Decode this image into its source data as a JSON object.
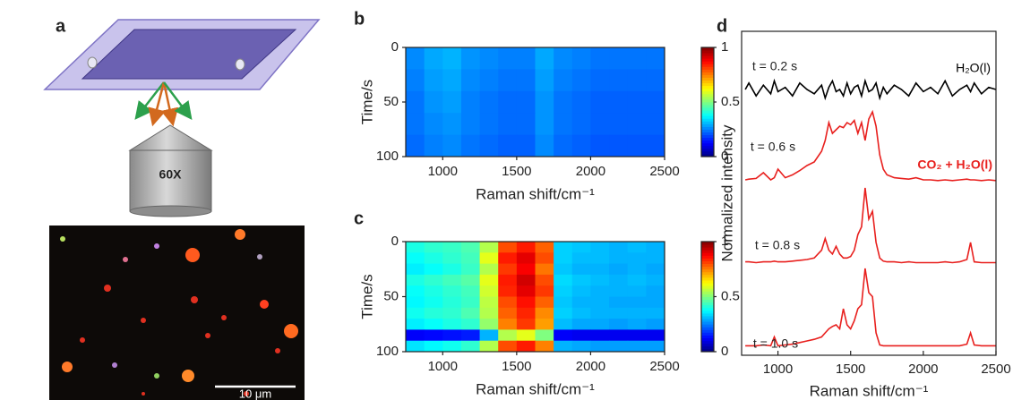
{
  "schematic": {
    "label": "a",
    "objective": "60X",
    "scale_bar": "10 μm"
  },
  "chart_data": [
    {
      "type": "heatmap",
      "label": "b",
      "xlabel": "Raman shift/cm⁻¹",
      "ylabel": "Time/s",
      "x": [
        812.5,
        937.5,
        1062.5,
        1187.5,
        1312.5,
        1437.5,
        1562.5,
        1687.5,
        1812.5,
        1937.5,
        2062.5,
        2187.5,
        2312.5,
        2437.5
      ],
      "y": [
        10,
        30,
        50,
        70,
        90
      ],
      "z": [
        [
          0.26,
          0.29,
          0.3,
          0.27,
          0.26,
          0.25,
          0.25,
          0.29,
          0.26,
          0.25,
          0.24,
          0.24,
          0.24,
          0.24
        ],
        [
          0.25,
          0.28,
          0.29,
          0.26,
          0.25,
          0.24,
          0.24,
          0.28,
          0.25,
          0.24,
          0.23,
          0.23,
          0.23,
          0.23
        ],
        [
          0.24,
          0.27,
          0.28,
          0.25,
          0.24,
          0.23,
          0.23,
          0.27,
          0.24,
          0.23,
          0.22,
          0.22,
          0.22,
          0.22
        ],
        [
          0.24,
          0.26,
          0.27,
          0.25,
          0.24,
          0.23,
          0.23,
          0.27,
          0.24,
          0.23,
          0.22,
          0.22,
          0.22,
          0.22
        ],
        [
          0.23,
          0.25,
          0.26,
          0.24,
          0.23,
          0.22,
          0.22,
          0.26,
          0.23,
          0.22,
          0.21,
          0.21,
          0.21,
          0.21
        ]
      ],
      "xlim": [
        750,
        2500
      ],
      "xticks": [
        1000,
        1500,
        2000,
        2500
      ],
      "ylim": [
        0,
        100
      ],
      "yticks": [
        0,
        50,
        100
      ],
      "y_inverted": true,
      "clim": [
        0,
        1
      ],
      "cticks": [
        0,
        0.5,
        1
      ]
    },
    {
      "type": "heatmap",
      "label": "c",
      "xlabel": "Raman shift/cm⁻¹",
      "ylabel": "Time/s",
      "x": [
        812.5,
        937.5,
        1062.5,
        1187.5,
        1312.5,
        1437.5,
        1562.5,
        1687.5,
        1812.5,
        1937.5,
        2062.5,
        2187.5,
        2312.5,
        2437.5
      ],
      "y": [
        5,
        15,
        25,
        35,
        45,
        55,
        65,
        75,
        85,
        95
      ],
      "z": [
        [
          0.4,
          0.42,
          0.43,
          0.45,
          0.55,
          0.8,
          0.85,
          0.78,
          0.33,
          0.32,
          0.31,
          0.3,
          0.31,
          0.3
        ],
        [
          0.38,
          0.4,
          0.42,
          0.44,
          0.6,
          0.85,
          0.9,
          0.8,
          0.33,
          0.31,
          0.31,
          0.3,
          0.3,
          0.3
        ],
        [
          0.36,
          0.38,
          0.4,
          0.43,
          0.55,
          0.82,
          0.88,
          0.76,
          0.32,
          0.3,
          0.3,
          0.29,
          0.3,
          0.29
        ],
        [
          0.4,
          0.42,
          0.44,
          0.46,
          0.6,
          0.85,
          0.92,
          0.8,
          0.34,
          0.32,
          0.31,
          0.3,
          0.31,
          0.3
        ],
        [
          0.38,
          0.4,
          0.42,
          0.44,
          0.58,
          0.84,
          0.9,
          0.82,
          0.33,
          0.31,
          0.3,
          0.3,
          0.3,
          0.29
        ],
        [
          0.37,
          0.39,
          0.41,
          0.43,
          0.56,
          0.8,
          0.86,
          0.78,
          0.32,
          0.3,
          0.3,
          0.29,
          0.29,
          0.29
        ],
        [
          0.39,
          0.41,
          0.42,
          0.45,
          0.55,
          0.78,
          0.84,
          0.74,
          0.33,
          0.31,
          0.3,
          0.3,
          0.3,
          0.3
        ],
        [
          0.36,
          0.38,
          0.4,
          0.42,
          0.52,
          0.75,
          0.82,
          0.72,
          0.31,
          0.29,
          0.29,
          0.28,
          0.29,
          0.28
        ],
        [
          0.12,
          0.13,
          0.14,
          0.15,
          0.3,
          0.55,
          0.6,
          0.5,
          0.12,
          0.11,
          0.11,
          0.11,
          0.11,
          0.11
        ],
        [
          0.35,
          0.37,
          0.39,
          0.42,
          0.55,
          0.8,
          0.85,
          0.75,
          0.3,
          0.29,
          0.28,
          0.28,
          0.28,
          0.28
        ]
      ],
      "xlim": [
        750,
        2500
      ],
      "xticks": [
        1000,
        1500,
        2000,
        2500
      ],
      "ylim": [
        0,
        100
      ],
      "yticks": [
        0,
        50,
        100
      ],
      "y_inverted": true,
      "clim": [
        0,
        1
      ],
      "cticks": [
        0,
        0.5,
        1
      ]
    },
    {
      "type": "line",
      "label": "d",
      "xlabel": "Raman shift/cm⁻¹",
      "ylabel": "Normalized intensity",
      "xlim": [
        750,
        2500
      ],
      "xticks": [
        1000,
        1500,
        2000,
        2500
      ],
      "x": [
        775,
        800,
        850,
        900,
        950,
        975,
        1000,
        1050,
        1100,
        1150,
        1200,
        1250,
        1300,
        1325,
        1350,
        1375,
        1400,
        1425,
        1450,
        1475,
        1500,
        1525,
        1550,
        1575,
        1600,
        1625,
        1650,
        1675,
        1700,
        1725,
        1750,
        1800,
        1850,
        1900,
        1950,
        2000,
        2050,
        2100,
        2150,
        2200,
        2250,
        2300,
        2325,
        2350,
        2400,
        2450,
        2500
      ],
      "series": [
        {
          "name": "t = 0.2 s",
          "color": "#000000",
          "values": [
            0.5,
            0.8,
            0.2,
            0.7,
            0.3,
            0.9,
            0.4,
            0.6,
            0.2,
            0.8,
            0.5,
            0.3,
            0.7,
            0.1,
            0.6,
            0.9,
            0.4,
            0.5,
            0.2,
            0.8,
            0.3,
            0.6,
            0.7,
            0.2,
            0.9,
            0.4,
            0.5,
            0.8,
            0.1,
            0.6,
            0.3,
            0.7,
            0.5,
            0.2,
            0.8,
            0.4,
            0.6,
            0.3,
            0.9,
            0.2,
            0.5,
            0.7,
            0.4,
            0.8,
            0.3,
            0.6,
            0.5
          ]
        },
        {
          "name": "t = 0.6 s",
          "color": "#e8201e",
          "values": [
            0.05,
            0.06,
            0.07,
            0.15,
            0.05,
            0.08,
            0.2,
            0.08,
            0.12,
            0.18,
            0.25,
            0.3,
            0.45,
            0.6,
            0.85,
            0.7,
            0.75,
            0.8,
            0.78,
            0.85,
            0.82,
            0.88,
            0.7,
            0.85,
            0.6,
            0.9,
            1.0,
            0.8,
            0.4,
            0.2,
            0.12,
            0.08,
            0.07,
            0.06,
            0.08,
            0.05,
            0.05,
            0.04,
            0.05,
            0.04,
            0.05,
            0.06,
            0.05,
            0.05,
            0.04,
            0.05,
            0.04
          ]
        },
        {
          "name": "t = 0.8 s",
          "color": "#e8201e",
          "values": [
            0.05,
            0.05,
            0.04,
            0.05,
            0.05,
            0.06,
            0.05,
            0.05,
            0.06,
            0.07,
            0.08,
            0.1,
            0.2,
            0.35,
            0.2,
            0.15,
            0.25,
            0.15,
            0.1,
            0.1,
            0.12,
            0.2,
            0.4,
            0.5,
            1.0,
            0.6,
            0.7,
            0.3,
            0.1,
            0.06,
            0.05,
            0.05,
            0.04,
            0.05,
            0.04,
            0.04,
            0.04,
            0.04,
            0.05,
            0.04,
            0.05,
            0.08,
            0.3,
            0.05,
            0.04,
            0.04,
            0.04
          ]
        },
        {
          "name": "t = 1.0 s",
          "color": "#e8201e",
          "values": [
            0.04,
            0.04,
            0.04,
            0.05,
            0.04,
            0.15,
            0.04,
            0.05,
            0.06,
            0.08,
            0.1,
            0.12,
            0.15,
            0.2,
            0.25,
            0.28,
            0.3,
            0.25,
            0.5,
            0.3,
            0.25,
            0.35,
            0.5,
            0.55,
            1.0,
            0.7,
            0.65,
            0.2,
            0.05,
            0.04,
            0.04,
            0.04,
            0.04,
            0.04,
            0.04,
            0.04,
            0.04,
            0.04,
            0.04,
            0.04,
            0.04,
            0.06,
            0.2,
            0.05,
            0.04,
            0.04,
            0.04
          ]
        }
      ],
      "annotations": [
        {
          "text": "H₂O(l)",
          "color": "#000000"
        },
        {
          "text": "CO₂ + H₂O(l)",
          "color": "#e8201e"
        }
      ]
    }
  ]
}
